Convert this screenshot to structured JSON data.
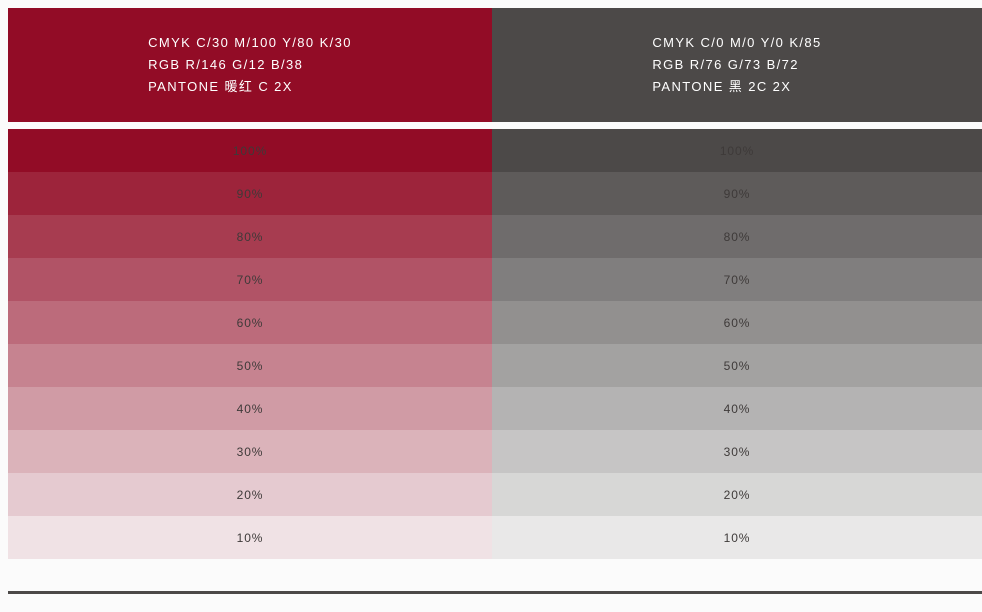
{
  "page": {
    "background": "#fbfbfb",
    "rule_color": "#4c4948",
    "label_color": "#3e3a39"
  },
  "columns": [
    {
      "id": "warm-red",
      "hex": "#920c26",
      "rgb": [
        146,
        12,
        38
      ],
      "header_lines": [
        "CMYK C/30 M/100 Y/80 K/30",
        "RGB R/146 G/12 B/38",
        "PANTONE 暖红 C 2X"
      ]
    },
    {
      "id": "black",
      "hex": "#4c4948",
      "rgb": [
        76,
        73,
        72
      ],
      "header_lines": [
        "CMYK C/0 M/0 Y/0 K/85",
        "RGB R/76 G/73 B/72",
        "PANTONE 黑 2C 2X"
      ]
    }
  ],
  "tints": [
    {
      "label": "100%",
      "alpha": 1.0
    },
    {
      "label": "90%",
      "alpha": 0.9
    },
    {
      "label": "80%",
      "alpha": 0.8
    },
    {
      "label": "70%",
      "alpha": 0.7
    },
    {
      "label": "60%",
      "alpha": 0.6
    },
    {
      "label": "50%",
      "alpha": 0.5
    },
    {
      "label": "40%",
      "alpha": 0.4
    },
    {
      "label": "30%",
      "alpha": 0.3
    },
    {
      "label": "20%",
      "alpha": 0.2
    },
    {
      "label": "10%",
      "alpha": 0.1
    }
  ]
}
